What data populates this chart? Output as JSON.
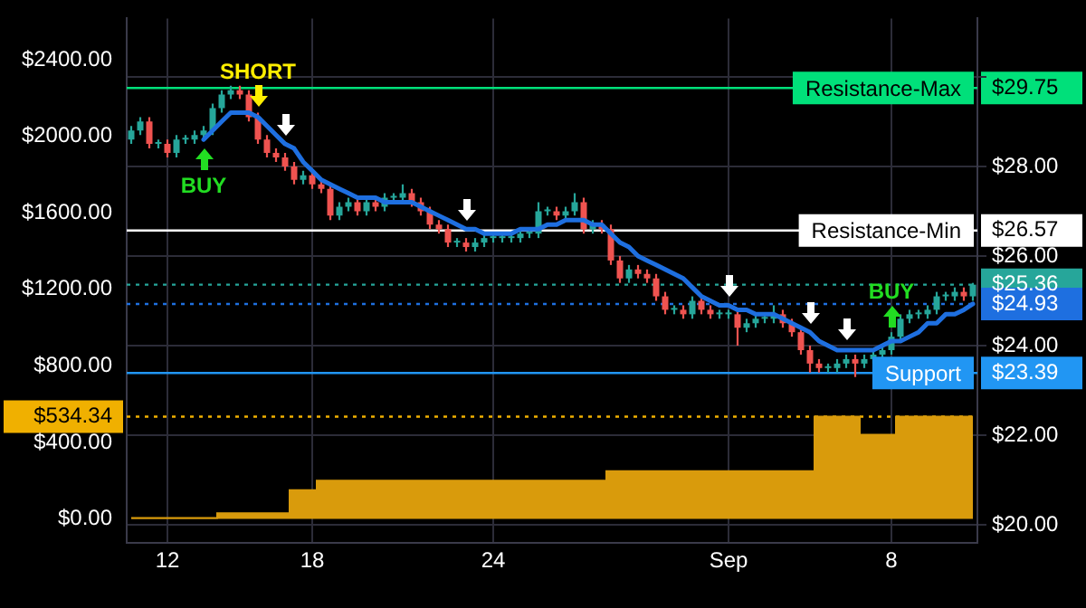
{
  "chart_data": {
    "type": "candlestick",
    "categories": [
      null,
      null,
      null,
      null,
      "12",
      null,
      null,
      null,
      null,
      null,
      null,
      null,
      null,
      null,
      null,
      null,
      null,
      null,
      null,
      null,
      "18",
      null,
      null,
      null,
      null,
      null,
      null,
      null,
      null,
      null,
      null,
      null,
      null,
      null,
      null,
      null,
      null,
      null,
      null,
      null,
      "24",
      null,
      null,
      null,
      null,
      null,
      null,
      null,
      null,
      null,
      null,
      null,
      null,
      null,
      null,
      null,
      null,
      null,
      null,
      null,
      null,
      null,
      null,
      null,
      null,
      null,
      "Sep",
      null,
      null,
      null,
      null,
      null,
      null,
      null,
      null,
      null,
      null,
      null,
      null,
      null,
      null,
      null,
      null,
      null,
      "8",
      null,
      null,
      null,
      null,
      null,
      null,
      null,
      null,
      null
    ],
    "series": [
      {
        "type": "area",
        "axis": "y",
        "color": "#d99b0c",
        "values": [
          5,
          5,
          5,
          5,
          5,
          5,
          5,
          5,
          5,
          5,
          30,
          30,
          30,
          30,
          30,
          30,
          30,
          30,
          150,
          150,
          150,
          200,
          200,
          200,
          200,
          200,
          200,
          200,
          200,
          200,
          200,
          200,
          200,
          200,
          200,
          200,
          200,
          200,
          200,
          200,
          200,
          200,
          200,
          200,
          200,
          200,
          200,
          200,
          200,
          200,
          200,
          200,
          200,
          250,
          250,
          250,
          250,
          250,
          250,
          250,
          250,
          250,
          250,
          250,
          250,
          250,
          250,
          250,
          250,
          250,
          250,
          250,
          250,
          250,
          250,
          250,
          534.34,
          534.34,
          534.34,
          534.34,
          534.34,
          440,
          440,
          440,
          440,
          534.34,
          534.34,
          534.34,
          534.34,
          534.34,
          534.34,
          534.34,
          534.34,
          534.34
        ]
      },
      {
        "type": "candlestick",
        "axis": "y2",
        "colors": [
          "#26a69a",
          "#26a69a",
          "#ef5350",
          "#26a69a",
          "#ef5350",
          "#26a69a",
          "#26a69a",
          "#26a69a",
          "#26a69a",
          "#26a69a",
          "#26a69a",
          "#26a69a",
          "#ef5350",
          "#ef5350",
          "#ef5350",
          "#ef5350",
          "#ef5350",
          "#ef5350",
          "#ef5350",
          "#26a69a",
          "#ef5350",
          "#ef5350",
          "#ef5350",
          "#26a69a",
          "#26a69a",
          "#ef5350",
          "#26a69a",
          "#ef5350",
          "#26a69a",
          "#26a69a",
          "#26a69a",
          "#ef5350",
          "#ef5350",
          "#ef5350",
          "#ef5350",
          "#ef5350",
          "#26a69a",
          "#ef5350",
          "#26a69a",
          "#26a69a",
          "#26a69a",
          "#26a69a",
          "#26a69a",
          "#26a69a",
          "#26a69a",
          "#26a69a",
          "#26a69a",
          "#ef5350",
          "#26a69a",
          "#26a69a",
          "#ef5350",
          "#26a69a",
          "#ef5350",
          "#ef5350",
          "#ef5350",
          "#26a69a",
          "#ef5350",
          "#ef5350",
          "#ef5350",
          "#ef5350",
          "#26a69a",
          "#ef5350",
          "#26a69a",
          "#ef5350",
          "#ef5350",
          "#26a69a",
          "#26a69a",
          "#ef5350",
          "#26a69a",
          "#26a69a",
          "#26a69a",
          "#26a69a",
          "#ef5350",
          "#ef5350",
          "#ef5350",
          "#ef5350",
          "#ef5350",
          "#26a69a",
          "#26a69a",
          "#26a69a",
          "#ef5350",
          "#26a69a",
          "#26a69a",
          "#26a69a",
          "#26a69a",
          "#26a69a",
          "#26a69a",
          "#26a69a",
          "#26a69a",
          "#26a69a",
          "#26a69a",
          "#26a69a",
          "#ef5350",
          "#26a69a"
        ],
        "ohlc": [
          [
            28.6,
            28.9,
            28.5,
            28.8
          ],
          [
            28.8,
            29.1,
            28.7,
            29.0
          ],
          [
            29.0,
            29.1,
            28.4,
            28.5
          ],
          [
            28.5,
            28.6,
            28.4,
            28.5
          ],
          [
            28.5,
            28.6,
            28.2,
            28.3
          ],
          [
            28.3,
            28.7,
            28.2,
            28.6
          ],
          [
            28.6,
            28.7,
            28.5,
            28.6
          ],
          [
            28.6,
            28.8,
            28.5,
            28.7
          ],
          [
            28.7,
            28.9,
            28.6,
            28.8
          ],
          [
            28.8,
            29.4,
            28.7,
            29.3
          ],
          [
            29.3,
            29.7,
            29.2,
            29.6
          ],
          [
            29.6,
            29.8,
            29.5,
            29.7
          ],
          [
            29.7,
            29.8,
            29.5,
            29.6
          ],
          [
            29.6,
            29.7,
            29.0,
            29.1
          ],
          [
            29.1,
            29.2,
            28.5,
            28.6
          ],
          [
            28.6,
            28.7,
            28.2,
            28.3
          ],
          [
            28.3,
            28.4,
            28.1,
            28.2
          ],
          [
            28.2,
            28.3,
            27.9,
            28.0
          ],
          [
            28.0,
            28.1,
            27.6,
            27.7
          ],
          [
            27.7,
            27.9,
            27.6,
            27.8
          ],
          [
            27.8,
            27.9,
            27.5,
            27.6
          ],
          [
            27.6,
            27.7,
            27.4,
            27.5
          ],
          [
            27.5,
            27.6,
            26.8,
            26.9
          ],
          [
            26.9,
            27.2,
            26.8,
            27.1
          ],
          [
            27.1,
            27.3,
            27.0,
            27.2
          ],
          [
            27.2,
            27.3,
            26.9,
            27.0
          ],
          [
            27.0,
            27.3,
            26.9,
            27.2
          ],
          [
            27.2,
            27.3,
            27.0,
            27.1
          ],
          [
            27.1,
            27.4,
            27.0,
            27.3
          ],
          [
            27.3,
            27.4,
            27.2,
            27.3
          ],
          [
            27.3,
            27.6,
            27.2,
            27.4
          ],
          [
            27.4,
            27.5,
            27.1,
            27.2
          ],
          [
            27.2,
            27.3,
            26.9,
            27.0
          ],
          [
            27.0,
            27.1,
            26.6,
            26.7
          ],
          [
            26.7,
            26.8,
            26.5,
            26.6
          ],
          [
            26.6,
            26.7,
            26.2,
            26.3
          ],
          [
            26.3,
            26.4,
            26.2,
            26.3
          ],
          [
            26.3,
            26.4,
            26.1,
            26.2
          ],
          [
            26.2,
            26.4,
            26.1,
            26.3
          ],
          [
            26.3,
            26.5,
            26.2,
            26.4
          ],
          [
            26.4,
            26.5,
            26.3,
            26.4
          ],
          [
            26.4,
            26.5,
            26.3,
            26.4
          ],
          [
            26.4,
            26.5,
            26.3,
            26.4
          ],
          [
            26.4,
            26.6,
            26.3,
            26.5
          ],
          [
            26.5,
            26.6,
            26.4,
            26.5
          ],
          [
            26.5,
            27.2,
            26.4,
            27.0
          ],
          [
            27.0,
            27.1,
            26.9,
            27.0
          ],
          [
            27.0,
            27.1,
            26.8,
            26.9
          ],
          [
            26.9,
            27.1,
            26.8,
            27.0
          ],
          [
            27.0,
            27.4,
            26.9,
            27.2
          ],
          [
            27.2,
            27.3,
            26.5,
            26.6
          ],
          [
            26.6,
            26.8,
            26.5,
            26.7
          ],
          [
            26.7,
            26.8,
            26.5,
            26.6
          ],
          [
            26.6,
            26.7,
            25.8,
            25.9
          ],
          [
            25.9,
            26.0,
            25.4,
            25.5
          ],
          [
            25.5,
            25.8,
            25.4,
            25.7
          ],
          [
            25.7,
            25.8,
            25.5,
            25.6
          ],
          [
            25.6,
            25.7,
            25.4,
            25.5
          ],
          [
            25.5,
            25.6,
            25.0,
            25.1
          ],
          [
            25.1,
            25.2,
            24.7,
            24.8
          ],
          [
            24.8,
            24.9,
            24.7,
            24.8
          ],
          [
            24.8,
            24.9,
            24.6,
            24.7
          ],
          [
            24.7,
            25.1,
            24.6,
            25.0
          ],
          [
            25.0,
            25.1,
            24.7,
            24.8
          ],
          [
            24.8,
            24.9,
            24.6,
            24.7
          ],
          [
            24.7,
            24.8,
            24.6,
            24.7
          ],
          [
            24.7,
            24.8,
            24.6,
            24.7
          ],
          [
            24.7,
            24.8,
            24.0,
            24.4
          ],
          [
            24.4,
            24.6,
            24.3,
            24.5
          ],
          [
            24.5,
            24.7,
            24.4,
            24.6
          ],
          [
            24.6,
            24.7,
            24.5,
            24.6
          ],
          [
            24.6,
            24.9,
            24.5,
            24.7
          ],
          [
            24.7,
            24.8,
            24.4,
            24.5
          ],
          [
            24.5,
            24.6,
            24.2,
            24.3
          ],
          [
            24.3,
            24.4,
            23.8,
            23.9
          ],
          [
            23.9,
            24.0,
            23.4,
            23.6
          ],
          [
            23.6,
            23.7,
            23.4,
            23.5
          ],
          [
            23.5,
            23.6,
            23.4,
            23.5
          ],
          [
            23.5,
            23.7,
            23.4,
            23.6
          ],
          [
            23.6,
            23.8,
            23.5,
            23.7
          ],
          [
            23.7,
            23.8,
            23.3,
            23.6
          ],
          [
            23.6,
            23.8,
            23.5,
            23.7
          ],
          [
            23.7,
            23.9,
            23.6,
            23.8
          ],
          [
            23.8,
            24.0,
            23.7,
            23.9
          ],
          [
            23.9,
            24.3,
            23.8,
            24.2
          ],
          [
            24.2,
            24.7,
            24.1,
            24.6
          ],
          [
            24.6,
            24.8,
            24.5,
            24.7
          ],
          [
            24.7,
            24.8,
            24.6,
            24.7
          ],
          [
            24.7,
            24.9,
            24.6,
            24.8
          ],
          [
            24.8,
            25.2,
            24.7,
            25.1
          ],
          [
            25.1,
            25.2,
            25.0,
            25.1
          ],
          [
            25.1,
            25.3,
            25.0,
            25.2
          ],
          [
            25.2,
            25.3,
            25.0,
            25.1
          ],
          [
            25.1,
            25.4,
            25.0,
            25.36
          ]
        ]
      },
      {
        "type": "line",
        "axis": "y2",
        "color": "#1e6fe0",
        "values": [
          null,
          null,
          null,
          null,
          null,
          null,
          null,
          null,
          28.6,
          28.8,
          29.0,
          29.2,
          29.2,
          29.2,
          29.1,
          28.9,
          28.7,
          28.5,
          28.4,
          28.1,
          27.9,
          27.7,
          27.6,
          27.5,
          27.4,
          27.3,
          27.3,
          27.3,
          27.2,
          27.2,
          27.2,
          27.2,
          27.1,
          27.0,
          26.9,
          26.8,
          26.7,
          26.6,
          26.6,
          26.5,
          26.5,
          26.5,
          26.5,
          26.6,
          26.6,
          26.6,
          26.7,
          26.7,
          26.8,
          26.8,
          26.8,
          26.7,
          26.7,
          26.5,
          26.3,
          26.2,
          26.0,
          25.9,
          25.8,
          25.7,
          25.6,
          25.5,
          25.3,
          25.1,
          25.0,
          24.9,
          24.9,
          24.8,
          24.8,
          24.7,
          24.7,
          24.7,
          24.6,
          24.5,
          24.4,
          24.3,
          24.1,
          24.0,
          23.9,
          23.9,
          23.9,
          23.9,
          23.9,
          24.0,
          24.1,
          24.1,
          24.2,
          24.3,
          24.5,
          24.5,
          24.7,
          24.7,
          24.8,
          24.93
        ]
      }
    ],
    "ylim": [
      -125,
      2615
    ],
    "yticks": [
      {
        "value": 0,
        "label": "$0.00"
      },
      {
        "value": 400,
        "label": "$400.00"
      },
      {
        "value": 800,
        "label": "$800.00"
      },
      {
        "value": 1200,
        "label": "$1200.00"
      },
      {
        "value": 1600,
        "label": "$1600.00"
      },
      {
        "value": 2000,
        "label": "$2000.00"
      },
      {
        "value": 2400,
        "label": "$2400.00"
      },
      {
        "value": 534.34,
        "label": "$534.34"
      }
    ],
    "y2lim": [
      19.6,
      31.3
    ],
    "y2ticks": [
      {
        "value": 20,
        "label": "$20.00"
      },
      {
        "value": 22,
        "label": "$22.00"
      },
      {
        "value": 24,
        "label": "$24.00"
      },
      {
        "value": 26,
        "label": "$26.00"
      },
      {
        "value": 28,
        "label": "$28.00"
      },
      {
        "value": 30,
        "label": null
      },
      {
        "value": 29.75,
        "label": "$29.75"
      },
      {
        "value": 26.57,
        "label": "$26.57"
      },
      {
        "value": 25.36,
        "label": "$25.36"
      },
      {
        "value": 24.93,
        "label": "$24.93"
      },
      {
        "value": 23.39,
        "label": "$23.39"
      }
    ],
    "ref_lines": [
      {
        "axis": "y2",
        "value": 29.75,
        "label": "Resistance-Max",
        "color": "#00e07a",
        "line_style": "solid"
      },
      {
        "axis": "y2",
        "value": 26.57,
        "label": "Resistance-Min",
        "color": "#ffffff",
        "line_style": "solid"
      },
      {
        "axis": "y2",
        "value": 25.36,
        "color": "#26a69a",
        "line_style": "dotted"
      },
      {
        "axis": "y2",
        "value": 24.93,
        "color": "#1e6fe0",
        "line_style": "dotted"
      },
      {
        "axis": "y2",
        "value": 23.39,
        "label": "Support",
        "color": "#2196f3",
        "line_style": "solid"
      },
      {
        "axis": "y",
        "value": 534.34,
        "color": "#f0b000",
        "line_style": "dotted"
      }
    ],
    "annotations": [
      "BUY",
      "SHORT",
      "BUY"
    ],
    "grid": true
  }
}
